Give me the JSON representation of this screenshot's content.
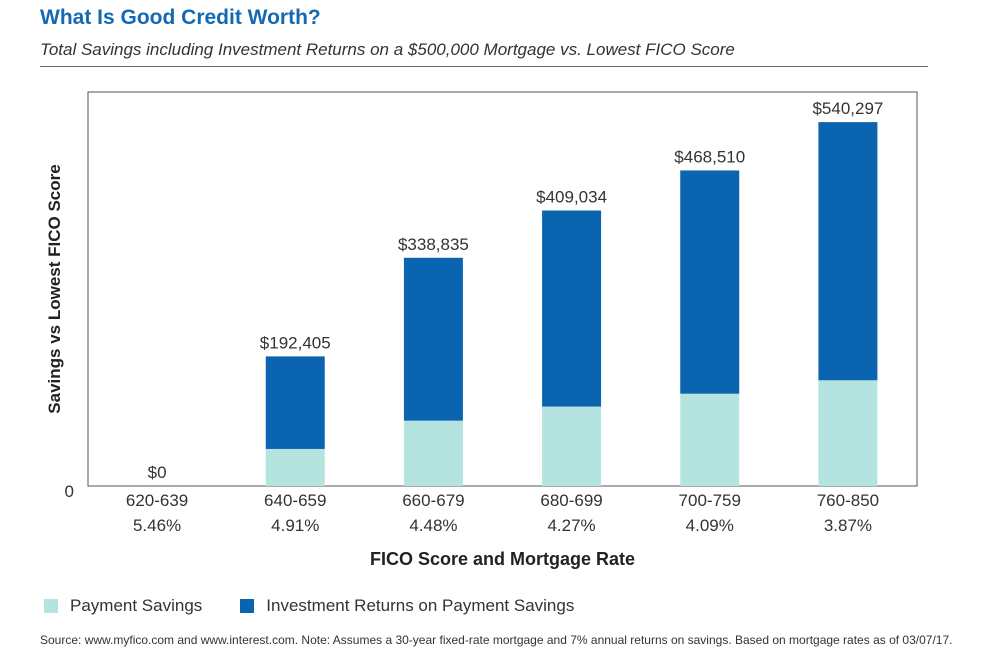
{
  "title": "What Is Good Credit Worth?",
  "subtitle": "Total Savings including Investment Returns on a $500,000 Mortgage vs. Lowest FICO Score",
  "source": "Source: www.myfico.com and www.interest.com. Note: Assumes a 30-year fixed-rate mortgage and 7% annual returns on savings. Based on mortgage rates as of 03/07/17.",
  "colors": {
    "payment_savings": "#b5e3e0",
    "investment_returns": "#0b64b0",
    "title": "#1469b4"
  },
  "chart_data": {
    "type": "bar",
    "stacked": true,
    "categories": [
      "620-639",
      "640-659",
      "660-679",
      "680-699",
      "700-759",
      "760-850"
    ],
    "rates": [
      "5.46%",
      "4.91%",
      "4.48%",
      "4.27%",
      "4.09%",
      "3.87%"
    ],
    "series": [
      {
        "name": "Payment Savings",
        "values": [
          0,
          55000,
          97000,
          118000,
          137000,
          157000
        ]
      },
      {
        "name": "Investment Returns on Payment Savings",
        "values": [
          0,
          137405,
          241835,
          291034,
          331510,
          383297
        ]
      }
    ],
    "totals": [
      0,
      192405,
      338835,
      409034,
      468510,
      540297
    ],
    "total_labels": [
      "$0",
      "$192,405",
      "$338,835",
      "$409,034",
      "$468,510",
      "$540,297"
    ],
    "xlabel": "FICO Score and Mortgage Rate",
    "ylabel": "Savings vs Lowest FICO Score",
    "y_tick_labels": [
      "0"
    ],
    "ylim": [
      0,
      585000
    ],
    "legend_position": "bottom-left",
    "grid": false
  }
}
